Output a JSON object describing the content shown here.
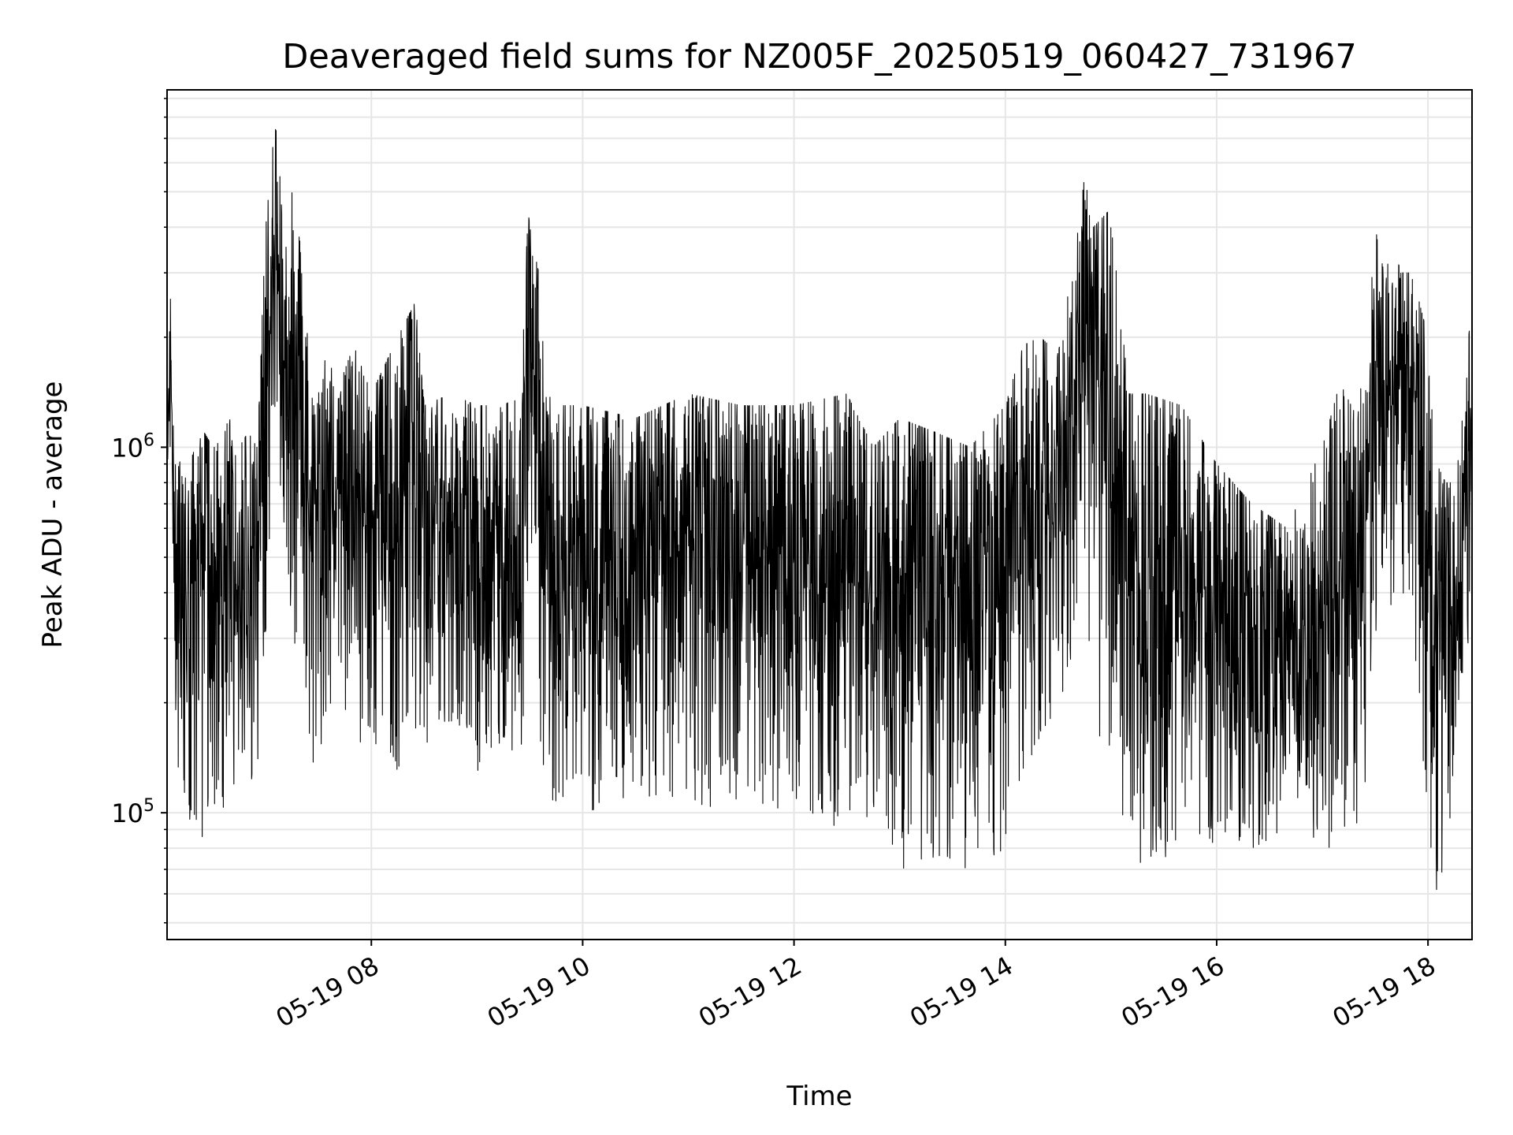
{
  "chart_data": {
    "type": "line",
    "title": "Deaveraged field sums for NZ005F_20250519_060427_731967",
    "xlabel": "Time",
    "ylabel": "Peak ADU - average",
    "y_scale": "log",
    "grid": true,
    "legend": "none",
    "xlim": [
      "2025-05-19 06:04",
      "2025-05-19 18:25"
    ],
    "ylim": [
      45000,
      9500000
    ],
    "x_ticks": [
      {
        "value": "2025-05-19 08:00",
        "label": "05-19 08"
      },
      {
        "value": "2025-05-19 10:00",
        "label": "05-19 10"
      },
      {
        "value": "2025-05-19 12:00",
        "label": "05-19 12"
      },
      {
        "value": "2025-05-19 14:00",
        "label": "05-19 14"
      },
      {
        "value": "2025-05-19 16:00",
        "label": "05-19 16"
      },
      {
        "value": "2025-05-19 18:00",
        "label": "05-19 18"
      }
    ],
    "y_ticks": [
      {
        "value": 100000,
        "base": "10",
        "exp": "5"
      },
      {
        "value": 1000000,
        "base": "10",
        "exp": "6"
      }
    ],
    "colors": {
      "line": "#000000",
      "grid": "#e6e6e6",
      "axes": "#000000"
    },
    "series": [
      {
        "x": [
          "2025-05-19 06:04",
          "2025-05-19 06:06",
          "2025-05-19 06:07",
          "2025-05-19 06:08",
          "2025-05-19 06:10",
          "2025-05-19 06:13",
          "2025-05-19 06:20",
          "2025-05-19 06:25",
          "2025-05-19 06:30",
          "2025-05-19 06:32",
          "2025-05-19 06:35",
          "2025-05-19 06:40",
          "2025-05-19 06:45",
          "2025-05-19 06:50",
          "2025-05-19 06:55",
          "2025-05-19 07:00",
          "2025-05-19 07:05",
          "2025-05-19 07:08",
          "2025-05-19 07:10",
          "2025-05-19 07:15",
          "2025-05-19 07:20",
          "2025-05-19 07:25",
          "2025-05-19 07:30",
          "2025-05-19 07:35",
          "2025-05-19 07:40",
          "2025-05-19 07:50",
          "2025-05-19 08:00",
          "2025-05-19 08:15",
          "2025-05-19 08:25",
          "2025-05-19 08:30",
          "2025-05-19 08:45",
          "2025-05-19 09:00",
          "2025-05-19 09:15",
          "2025-05-19 09:25",
          "2025-05-19 09:28",
          "2025-05-19 09:30",
          "2025-05-19 09:35",
          "2025-05-19 09:40",
          "2025-05-19 09:45",
          "2025-05-19 10:00",
          "2025-05-19 10:30",
          "2025-05-19 11:00",
          "2025-05-19 11:30",
          "2025-05-19 12:00",
          "2025-05-19 12:30",
          "2025-05-19 12:45",
          "2025-05-19 13:00",
          "2025-05-19 13:20",
          "2025-05-19 13:40",
          "2025-05-19 14:00",
          "2025-05-19 14:10",
          "2025-05-19 14:20",
          "2025-05-19 14:30",
          "2025-05-19 14:40",
          "2025-05-19 14:45",
          "2025-05-19 14:50",
          "2025-05-19 15:00",
          "2025-05-19 15:05",
          "2025-05-19 15:10",
          "2025-05-19 15:20",
          "2025-05-19 15:40",
          "2025-05-19 16:00",
          "2025-05-19 16:20",
          "2025-05-19 16:40",
          "2025-05-19 17:00",
          "2025-05-19 17:10",
          "2025-05-19 17:20",
          "2025-05-19 17:25",
          "2025-05-19 17:30",
          "2025-05-19 17:35",
          "2025-05-19 17:40",
          "2025-05-19 17:45",
          "2025-05-19 17:50",
          "2025-05-19 17:55",
          "2025-05-19 18:00",
          "2025-05-19 18:05",
          "2025-05-19 18:10",
          "2025-05-19 18:15",
          "2025-05-19 18:20",
          "2025-05-19 18:25"
        ],
        "peak": [
          1200000,
          2600000,
          1500000,
          900000,
          1000000,
          800000,
          1000000,
          1100000,
          1000000,
          1000000,
          1100000,
          1200000,
          1000000,
          1100000,
          1000000,
          4000000,
          7500000,
          7000000,
          3000000,
          5000000,
          3500000,
          1700000,
          1400000,
          1900000,
          1400000,
          1900000,
          1400000,
          2000000,
          2500000,
          1300000,
          1400000,
          1300000,
          1300000,
          1400000,
          5500000,
          4000000,
          3000000,
          1400000,
          1300000,
          1300000,
          1200000,
          1400000,
          1300000,
          1300000,
          1400000,
          1000000,
          1200000,
          1100000,
          1000000,
          1300000,
          1900000,
          2000000,
          1800000,
          3500000,
          5500000,
          4000000,
          4500000,
          2500000,
          1400000,
          1400000,
          1300000,
          900000,
          700000,
          600000,
          1000000,
          1500000,
          1200000,
          2000000,
          4000000,
          3000000,
          3500000,
          3000000,
          3000000,
          2500000,
          2000000,
          900000,
          800000,
          800000,
          1400000,
          2500000
        ],
        "floor": [
          900000,
          650000,
          450000,
          250000,
          130000,
          100000,
          90000,
          85000,
          90000,
          100000,
          100000,
          120000,
          110000,
          100000,
          120000,
          300000,
          900000,
          700000,
          600000,
          300000,
          200000,
          150000,
          120000,
          200000,
          180000,
          160000,
          150000,
          130000,
          170000,
          150000,
          180000,
          130000,
          150000,
          120000,
          300000,
          700000,
          150000,
          110000,
          90000,
          100000,
          110000,
          100000,
          110000,
          100000,
          90000,
          100000,
          70000,
          75000,
          70000,
          80000,
          130000,
          160000,
          200000,
          250000,
          450000,
          150000,
          150000,
          100000,
          80000,
          70000,
          80000,
          80000,
          80000,
          90000,
          75000,
          90000,
          80000,
          120000,
          300000,
          400000,
          350000,
          400000,
          300000,
          200000,
          80000,
          60000,
          60000,
          150000,
          250000,
          300000
        ]
      }
    ]
  }
}
